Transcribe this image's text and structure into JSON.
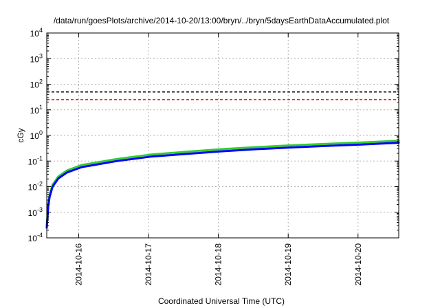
{
  "chart_data": {
    "type": "line",
    "title": "/data/run/goesPlots/archive/2014-10-20/13:00/bryn/../bryn/5daysEarthDataAccumulated.plot",
    "xlabel": "Coordinated Universal Time (UTC)",
    "ylabel": "cGy",
    "xscale": "time",
    "yscale": "log",
    "xlim": [
      "2014-10-15T13:00",
      "2014-10-20T14:00"
    ],
    "ylim": [
      0.0001,
      10000
    ],
    "x_ticks": [
      "2014-10-16",
      "2014-10-17",
      "2014-10-18",
      "2014-10-19",
      "2014-10-20"
    ],
    "y_ticks": [
      {
        "base": "10",
        "exp": "-4"
      },
      {
        "base": "10",
        "exp": "-3"
      },
      {
        "base": "10",
        "exp": "-2"
      },
      {
        "base": "10",
        "exp": "-1"
      },
      {
        "base": "10",
        "exp": "0"
      },
      {
        "base": "10",
        "exp": "1"
      },
      {
        "base": "10",
        "exp": "2"
      },
      {
        "base": "10",
        "exp": "3"
      },
      {
        "base": "10",
        "exp": "4"
      }
    ],
    "grid": true,
    "thresholds": [
      {
        "y": 50,
        "color": "#000000",
        "style": "dashed"
      },
      {
        "y": 25,
        "color": "#ff0000",
        "style": "dashed"
      }
    ],
    "series": [
      {
        "color": "#33cc33",
        "x": [
          "2014-10-15T13:00",
          "2014-10-15T13:30",
          "2014-10-15T14:00",
          "2014-10-15T15:00",
          "2014-10-15T17:00",
          "2014-10-15T20:00",
          "2014-10-16T01:00",
          "2014-10-16T13:00",
          "2014-10-17T01:00",
          "2014-10-17T13:00",
          "2014-10-18T01:00",
          "2014-10-18T13:00",
          "2014-10-19T01:00",
          "2014-10-19T13:00",
          "2014-10-20T01:00",
          "2014-10-20T14:00"
        ],
        "y": [
          0.0003,
          0.002,
          0.005,
          0.012,
          0.025,
          0.043,
          0.07,
          0.12,
          0.18,
          0.23,
          0.29,
          0.35,
          0.41,
          0.47,
          0.53,
          0.62
        ]
      },
      {
        "color": "#0000ff",
        "x": [
          "2014-10-15T13:00",
          "2014-10-15T13:30",
          "2014-10-15T14:00",
          "2014-10-15T15:00",
          "2014-10-15T17:00",
          "2014-10-15T20:00",
          "2014-10-16T01:00",
          "2014-10-16T13:00",
          "2014-10-17T01:00",
          "2014-10-17T13:00",
          "2014-10-18T01:00",
          "2014-10-18T13:00",
          "2014-10-19T01:00",
          "2014-10-19T13:00",
          "2014-10-20T01:00",
          "2014-10-20T14:00"
        ],
        "y": [
          0.00025,
          0.0016,
          0.004,
          0.01,
          0.021,
          0.036,
          0.058,
          0.1,
          0.15,
          0.19,
          0.24,
          0.29,
          0.34,
          0.39,
          0.44,
          0.52
        ]
      }
    ]
  }
}
